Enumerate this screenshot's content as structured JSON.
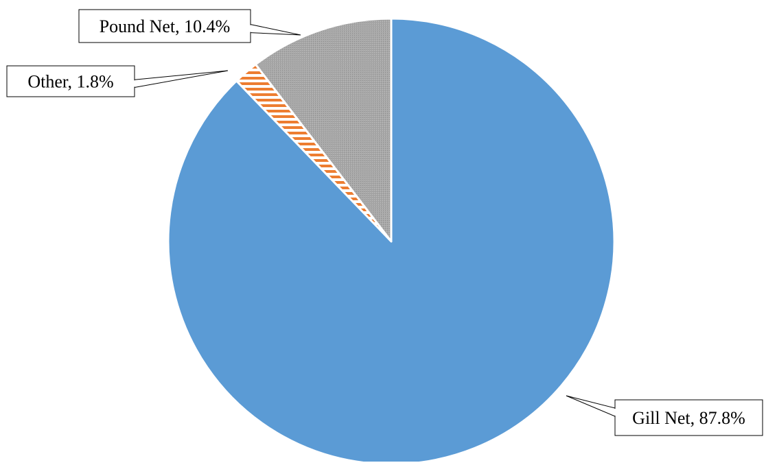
{
  "chart_data": {
    "type": "pie",
    "title": "",
    "slices": [
      {
        "label": "Gill Net",
        "value": 87.8,
        "display": "Gill Net, 87.8%",
        "color": "#5B9BD5",
        "pattern": "solid"
      },
      {
        "label": "Other",
        "value": 1.8,
        "display": "Other, 1.8%",
        "color": "#ED7D31",
        "pattern": "horizontal-stripes"
      },
      {
        "label": "Pound Net",
        "value": 10.4,
        "display": "Pound Net, 10.4%",
        "color": "#A5A5A5",
        "pattern": "dotted"
      }
    ],
    "start_angle": "12 o'clock",
    "direction": "clockwise",
    "legend": "none",
    "data_labels": "callouts"
  }
}
